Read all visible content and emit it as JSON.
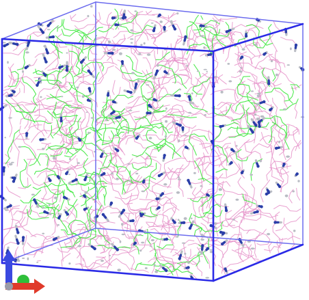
{
  "scene": {
    "description_free": true,
    "colors": {
      "background": "#ffffff",
      "box_edges": "#2a2ae6",
      "box_back_edges": "#6b6bee",
      "pink_molecules": "#e58fc8",
      "green_molecules": "#3fe83f",
      "blue_atoms": "#2b3fa8",
      "grey_atoms": "#b9bcc4",
      "axis_x": "#e03a2a",
      "axis_y": "#3a49e0",
      "axis_z": "#2fbf3a"
    },
    "density": {
      "pink_segments": 2600,
      "green_segments": 1100,
      "ion_sticks": 150,
      "grey_dots": 180
    }
  },
  "axes": {
    "icon": "xyz-axes-icon"
  }
}
